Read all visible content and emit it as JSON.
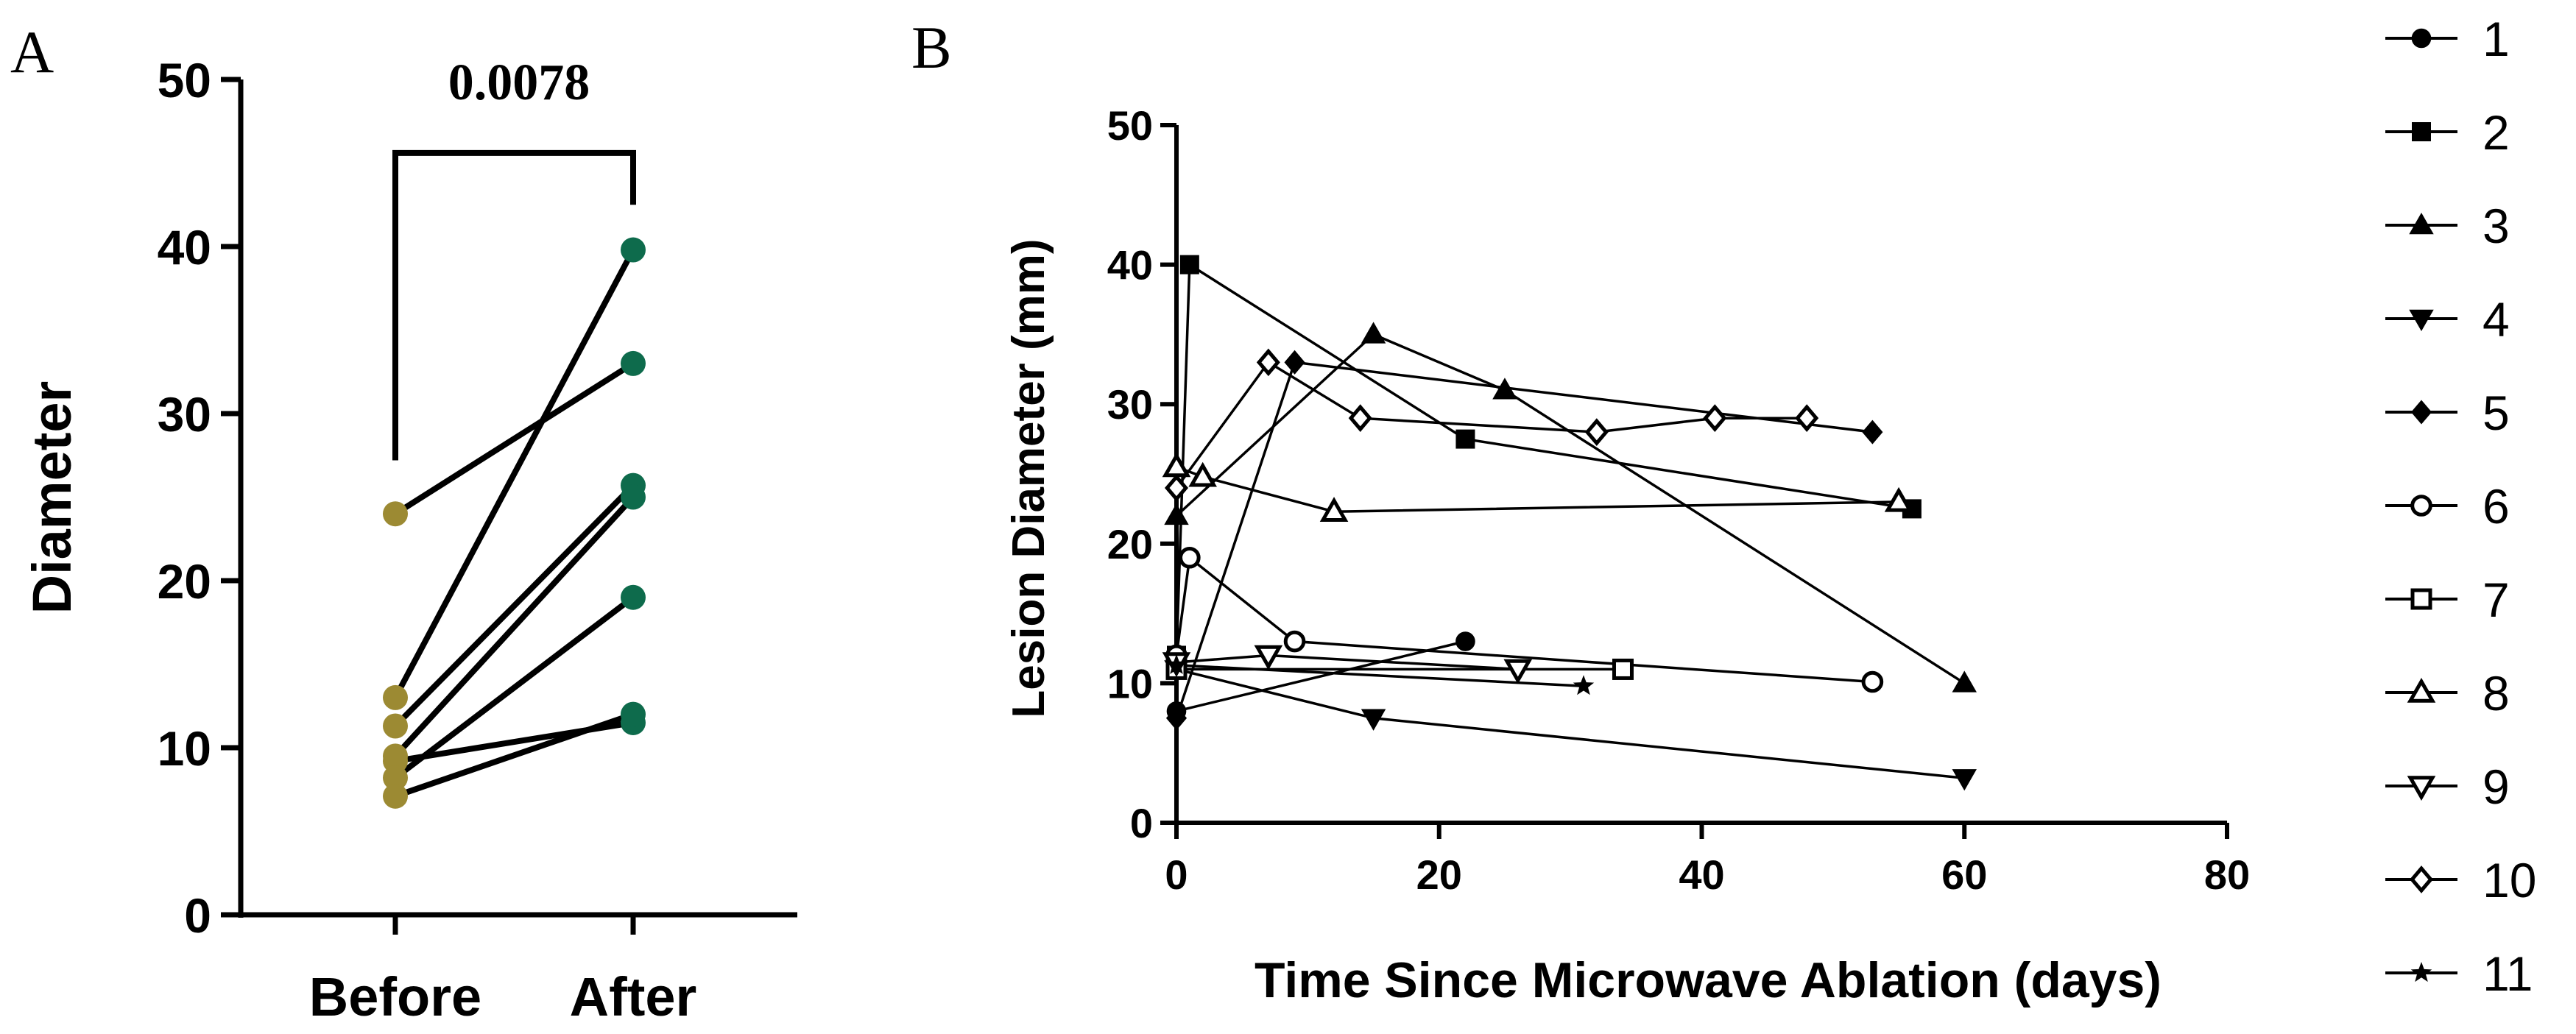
{
  "chart_data": [
    {
      "panel": "A",
      "type": "line",
      "subtype": "paired-dot",
      "categories": [
        "Before",
        "After"
      ],
      "ylabel": "Diameter",
      "ylim": [
        0,
        50
      ],
      "yticks": [
        0,
        10,
        20,
        30,
        40,
        50
      ],
      "significance": {
        "label": "0.0078"
      },
      "before_color": "#9c8a33",
      "after_color": "#0e6b4c",
      "pairs": [
        {
          "before": 24,
          "after": 33
        },
        {
          "before": 13,
          "after": 39.8
        },
        {
          "before": 11.3,
          "after": 25.7
        },
        {
          "before": 9.5,
          "after": 25
        },
        {
          "before": 9.2,
          "after": 11.5
        },
        {
          "before": 8.2,
          "after": 19
        },
        {
          "before": 7.1,
          "after": 12
        }
      ]
    },
    {
      "panel": "B",
      "type": "scatter",
      "subtype": "line-with-markers",
      "xlabel": "Time Since Microwave Ablation (days)",
      "ylabel": "Lesion Diameter (mm)",
      "xlim": [
        0,
        80
      ],
      "ylim": [
        0,
        50
      ],
      "xticks": [
        0,
        20,
        40,
        60,
        80
      ],
      "yticks": [
        0,
        10,
        20,
        30,
        40,
        50
      ],
      "legend_position": "right",
      "series": [
        {
          "name": "1",
          "marker": "circle-filled",
          "x": [
            0,
            22
          ],
          "y": [
            8,
            13
          ]
        },
        {
          "name": "2",
          "marker": "square-filled",
          "x": [
            0,
            1,
            22,
            56
          ],
          "y": [
            12,
            40,
            27.5,
            22.5
          ]
        },
        {
          "name": "3",
          "marker": "triangle-up-filled",
          "x": [
            0,
            15,
            25,
            60
          ],
          "y": [
            22,
            35,
            31,
            10
          ]
        },
        {
          "name": "4",
          "marker": "triangle-down-filled",
          "x": [
            0,
            15,
            60
          ],
          "y": [
            11,
            7.5,
            3.2
          ]
        },
        {
          "name": "5",
          "marker": "diamond-filled",
          "x": [
            0,
            9,
            53
          ],
          "y": [
            7.5,
            33,
            28
          ]
        },
        {
          "name": "6",
          "marker": "circle-open",
          "x": [
            0,
            1,
            9,
            53
          ],
          "y": [
            12,
            19,
            13,
            10.1
          ]
        },
        {
          "name": "7",
          "marker": "square-open",
          "x": [
            0,
            34
          ],
          "y": [
            11,
            11
          ]
        },
        {
          "name": "8",
          "marker": "triangle-up-open",
          "x": [
            0,
            2,
            12,
            55
          ],
          "y": [
            25.5,
            24.8,
            22.3,
            23
          ]
        },
        {
          "name": "9",
          "marker": "triangle-down-open",
          "x": [
            0,
            7,
            26
          ],
          "y": [
            11.5,
            12,
            11
          ]
        },
        {
          "name": "10",
          "marker": "diamond-open",
          "x": [
            0,
            7,
            14,
            32,
            41,
            48
          ],
          "y": [
            24,
            33,
            29,
            28,
            29,
            29
          ]
        },
        {
          "name": "11",
          "marker": "star",
          "x": [
            0,
            31
          ],
          "y": [
            11.3,
            9.8
          ]
        }
      ]
    }
  ]
}
